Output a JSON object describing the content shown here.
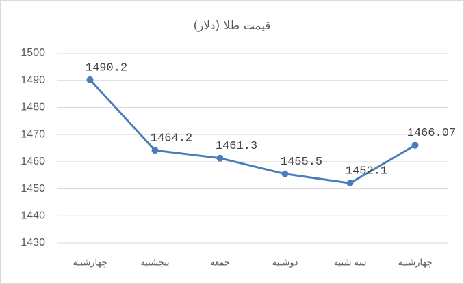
{
  "chart_data": {
    "type": "line",
    "title": "قیمت طلا (دلار)",
    "categories": [
      "چهارشنبه",
      "پنجشنبه",
      "جمعه",
      "دوشنبه",
      "سه شنبه",
      "چهارشنبه"
    ],
    "values": [
      1490.2,
      1464.2,
      1461.3,
      1455.5,
      1452.1,
      1466.07
    ],
    "color": "#4a7ebb",
    "ylim": [
      1430,
      1500
    ],
    "yticks": [
      1430,
      1440,
      1450,
      1460,
      1470,
      1480,
      1490,
      1500
    ],
    "grid": true
  }
}
